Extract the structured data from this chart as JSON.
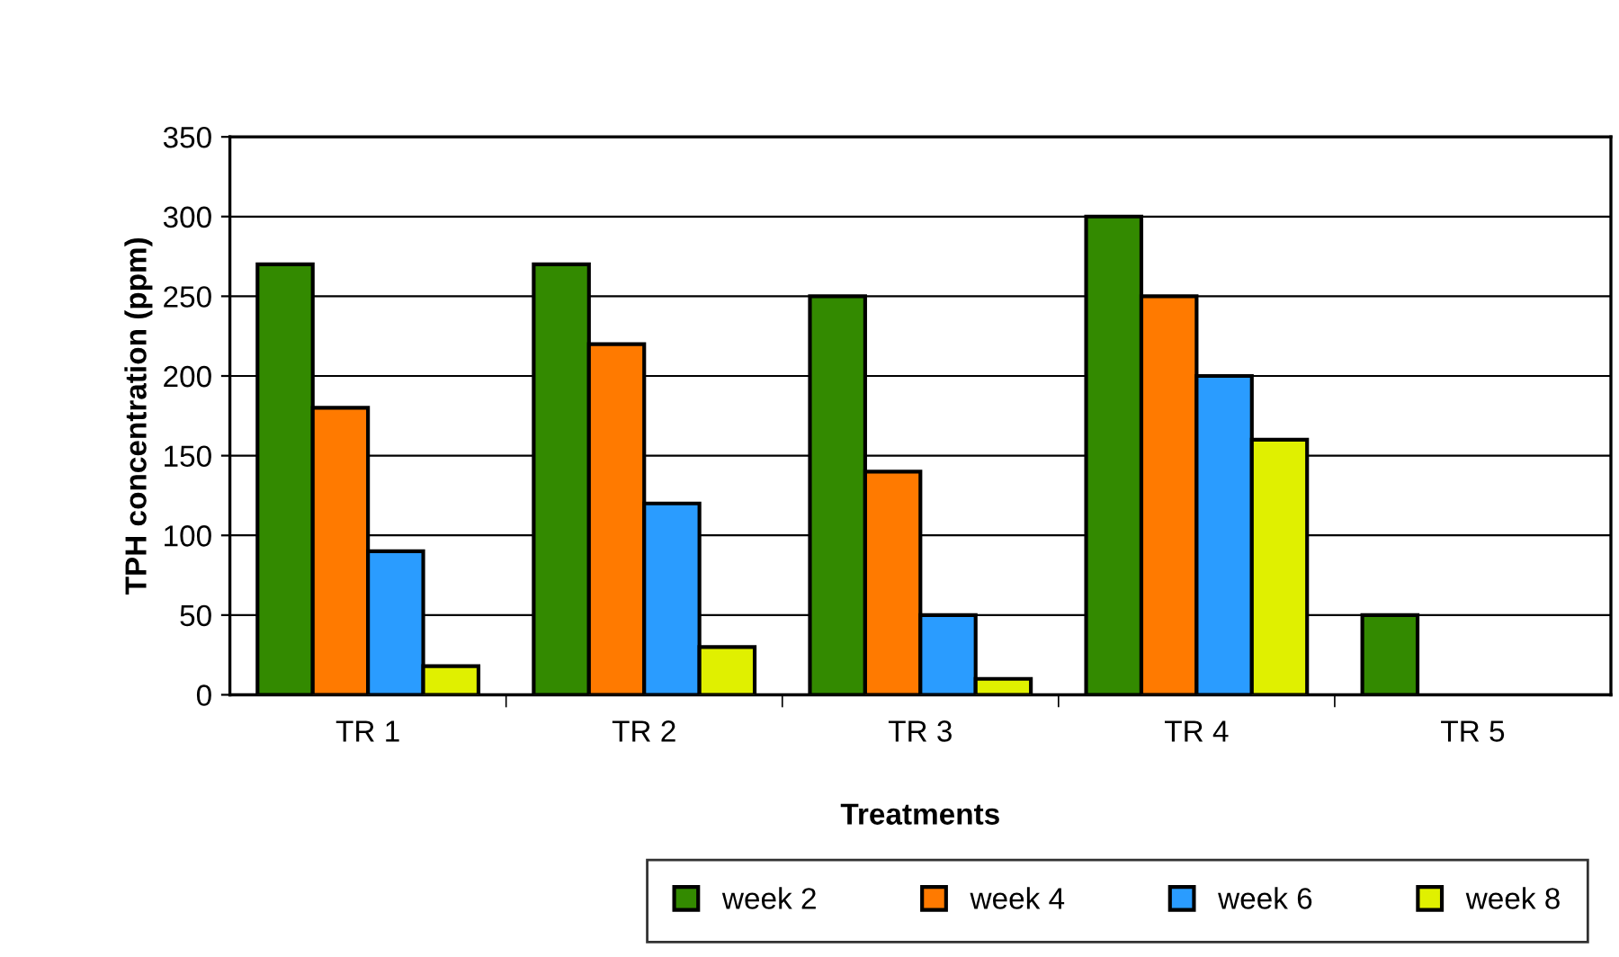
{
  "chart_data": {
    "type": "bar",
    "xlabel": "Treatments",
    "ylabel": "TPH concentration (ppm)",
    "categories": [
      "TR 1",
      "TR 2",
      "TR 3",
      "TR 4",
      "TR 5"
    ],
    "series": [
      {
        "name": "week 2",
        "color": "#338a00",
        "values": [
          270,
          270,
          250,
          300,
          50
        ]
      },
      {
        "name": "week 4",
        "color": "#ff7a00",
        "values": [
          180,
          220,
          140,
          250,
          null
        ]
      },
      {
        "name": "week 6",
        "color": "#2a9cff",
        "values": [
          90,
          120,
          50,
          200,
          null
        ]
      },
      {
        "name": "week 8",
        "color": "#e0f000",
        "values": [
          18,
          30,
          10,
          160,
          null
        ]
      }
    ],
    "ylim": [
      0,
      350
    ],
    "yticks": [
      0,
      50,
      100,
      150,
      200,
      250,
      300,
      350
    ],
    "grid": "y",
    "legend": "bottom"
  }
}
